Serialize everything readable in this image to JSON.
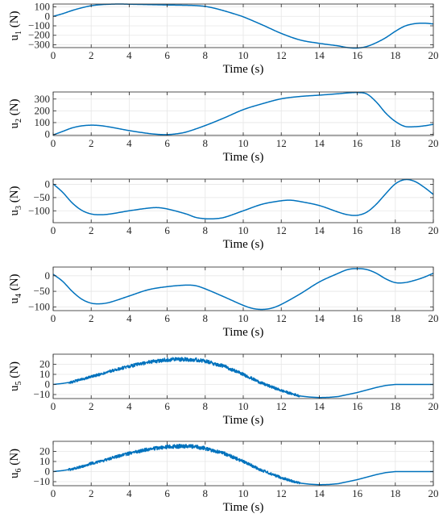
{
  "chart_data": [
    {
      "type": "line",
      "title": "",
      "ylabel": "u",
      "ylabel_sub": "1",
      "ylabel_unit": " (N)",
      "xlabel": "Time (s)",
      "xlim": [
        0,
        20
      ],
      "ylim": [
        -330,
        130
      ],
      "xticks": [
        0,
        2,
        4,
        6,
        8,
        10,
        12,
        14,
        16,
        18,
        20
      ],
      "yticks": [
        100,
        0,
        -100,
        -200,
        -300
      ],
      "grid": true,
      "color": "#0072BD",
      "series": [
        {
          "x": [
            0,
            0.5,
            1,
            1.5,
            2,
            2.5,
            3,
            3.5,
            4,
            5,
            6,
            7,
            7.5,
            8,
            8.5,
            9,
            9.5,
            10,
            11,
            12,
            13,
            14,
            15,
            15.5,
            16,
            16.5,
            17,
            17.5,
            18,
            18.5,
            19,
            19.5,
            20
          ],
          "y": [
            0,
            28,
            62,
            90,
            112,
            123,
            128,
            130,
            128,
            124,
            120,
            117,
            114,
            105,
            85,
            58,
            28,
            -5,
            -90,
            -180,
            -250,
            -285,
            -312,
            -330,
            -335,
            -318,
            -278,
            -225,
            -158,
            -103,
            -78,
            -72,
            -80
          ]
        }
      ]
    },
    {
      "type": "line",
      "title": "",
      "ylabel": "u",
      "ylabel_sub": "2",
      "ylabel_unit": " (N)",
      "xlabel": "Time (s)",
      "xlim": [
        0,
        20
      ],
      "ylim": [
        -10,
        360
      ],
      "xticks": [
        0,
        2,
        4,
        6,
        8,
        10,
        12,
        14,
        16,
        18,
        20
      ],
      "yticks": [
        300,
        200,
        100,
        0
      ],
      "grid": true,
      "color": "#0072BD",
      "series": [
        {
          "x": [
            0,
            0.5,
            1,
            1.5,
            2,
            2.5,
            3,
            4,
            5,
            5.5,
            6,
            6.5,
            7,
            8,
            9,
            10,
            11,
            12,
            13,
            14,
            15,
            15.5,
            16,
            16.5,
            17,
            17.5,
            18,
            18.5,
            19,
            19.5,
            20
          ],
          "y": [
            -5,
            25,
            55,
            72,
            78,
            74,
            62,
            32,
            8,
            0,
            -2,
            5,
            20,
            75,
            140,
            210,
            260,
            302,
            322,
            333,
            345,
            352,
            355,
            343,
            275,
            180,
            110,
            68,
            65,
            72,
            85
          ]
        }
      ]
    },
    {
      "type": "line",
      "title": "",
      "ylabel": "u",
      "ylabel_sub": "3",
      "ylabel_unit": " (N)",
      "xlabel": "Time (s)",
      "xlim": [
        0,
        20
      ],
      "ylim": [
        -145,
        20
      ],
      "xticks": [
        0,
        2,
        4,
        6,
        8,
        10,
        12,
        14,
        16,
        18,
        20
      ],
      "yticks": [
        0,
        -50,
        -100
      ],
      "grid": true,
      "color": "#0072BD",
      "series": [
        {
          "x": [
            0,
            0.5,
            1,
            1.5,
            2,
            2.5,
            3,
            4,
            5,
            5.5,
            6,
            7,
            7.5,
            8,
            8.5,
            9,
            10,
            11,
            12,
            12.5,
            13,
            14,
            15,
            15.5,
            16,
            16.5,
            17,
            17.5,
            18,
            18.5,
            19,
            19.5,
            20
          ],
          "y": [
            2,
            -30,
            -70,
            -98,
            -112,
            -115,
            -112,
            -100,
            -90,
            -88,
            -93,
            -112,
            -125,
            -130,
            -130,
            -125,
            -100,
            -75,
            -62,
            -60,
            -65,
            -80,
            -105,
            -115,
            -117,
            -105,
            -75,
            -35,
            2,
            18,
            12,
            -10,
            -38
          ]
        }
      ]
    },
    {
      "type": "line",
      "title": "",
      "ylabel": "u",
      "ylabel_sub": "4",
      "ylabel_unit": " (N)",
      "xlabel": "Time (s)",
      "xlim": [
        0,
        20
      ],
      "ylim": [
        -112,
        28
      ],
      "xticks": [
        0,
        2,
        4,
        6,
        8,
        10,
        12,
        14,
        16,
        18,
        20
      ],
      "yticks": [
        0,
        -50,
        -100
      ],
      "grid": true,
      "color": "#0072BD",
      "series": [
        {
          "x": [
            0,
            0.5,
            1,
            1.5,
            2,
            2.5,
            3,
            4,
            5,
            6,
            7,
            7.5,
            8,
            9,
            10,
            10.5,
            11,
            11.5,
            12,
            13,
            14,
            15,
            15.5,
            16,
            16.5,
            17,
            17.5,
            18,
            18.5,
            19,
            19.5,
            20
          ],
          "y": [
            5,
            -18,
            -50,
            -75,
            -88,
            -90,
            -85,
            -65,
            -45,
            -35,
            -30,
            -32,
            -42,
            -68,
            -95,
            -105,
            -108,
            -104,
            -92,
            -58,
            -20,
            8,
            20,
            23,
            20,
            8,
            -10,
            -22,
            -22,
            -15,
            -5,
            8
          ]
        }
      ]
    },
    {
      "type": "line",
      "title": "",
      "ylabel": "u",
      "ylabel_sub": "5",
      "ylabel_unit": " (N)",
      "xlabel": "Time (s)",
      "xlim": [
        0,
        20
      ],
      "ylim": [
        -14,
        30
      ],
      "xticks": [
        0,
        2,
        4,
        6,
        8,
        10,
        12,
        14,
        16,
        18,
        20
      ],
      "yticks": [
        20,
        10,
        0,
        -10
      ],
      "grid": true,
      "color": "#0072BD",
      "series": [
        {
          "x": [
            0,
            0.5,
            1,
            1.5,
            2,
            2.5,
            3,
            4,
            5,
            6,
            6.5,
            7,
            7.5,
            8,
            9,
            10,
            11,
            12,
            12.5,
            13,
            13.5,
            14,
            14.5,
            15,
            16,
            17,
            17.5,
            18,
            19,
            20
          ],
          "y": [
            0,
            1,
            2.5,
            5,
            8,
            10,
            13,
            18,
            22,
            24.5,
            25,
            25,
            24.5,
            23,
            18,
            10,
            1,
            -6,
            -9,
            -11.5,
            -12.5,
            -13,
            -12.8,
            -12,
            -8,
            -3,
            -1,
            0,
            0,
            0
          ]
        }
      ]
    },
    {
      "type": "line",
      "title": "",
      "ylabel": "u",
      "ylabel_sub": "6",
      "ylabel_unit": " (N)",
      "xlabel": "Time (s)",
      "xlim": [
        0,
        20
      ],
      "ylim": [
        -14,
        30
      ],
      "xticks": [
        0,
        2,
        4,
        6,
        8,
        10,
        12,
        14,
        16,
        18,
        20
      ],
      "yticks": [
        20,
        10,
        0,
        -10
      ],
      "grid": true,
      "color": "#0072BD",
      "series": [
        {
          "x": [
            0,
            0.5,
            1,
            1.5,
            2,
            2.5,
            3,
            4,
            5,
            6,
            6.5,
            7,
            7.5,
            8,
            9,
            10,
            11,
            12,
            12.5,
            13,
            13.5,
            14,
            14.5,
            15,
            16,
            17,
            17.5,
            18,
            19,
            20
          ],
          "y": [
            0,
            1,
            2.5,
            5,
            8,
            10,
            13,
            18,
            22,
            24.5,
            25,
            25,
            24.5,
            23,
            18,
            10,
            1,
            -6,
            -9,
            -11.5,
            -12.5,
            -13,
            -12.8,
            -12,
            -8,
            -3,
            -1,
            0,
            0,
            0
          ]
        }
      ]
    }
  ]
}
